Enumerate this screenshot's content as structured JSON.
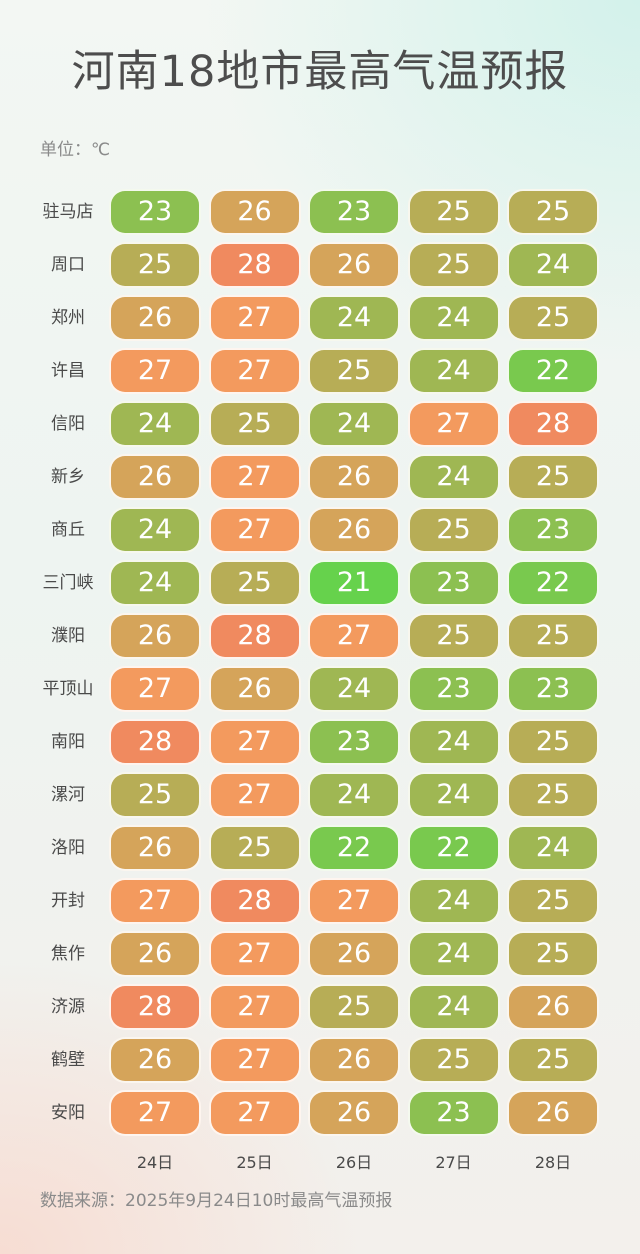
{
  "title": "河南18地市最高气温预报",
  "unit": "单位：℃",
  "source": "数据来源：2025年9月24日10时最高气温预报",
  "colors": {
    "cool": "#66d24c",
    "mild": "#a8b254",
    "warm": "#f39a5e",
    "hot": "#f08a5f"
  },
  "chart_data": {
    "type": "heatmap",
    "columns": [
      "24日",
      "25日",
      "26日",
      "27日",
      "28日"
    ],
    "rows": [
      "驻马店",
      "周口",
      "郑州",
      "许昌",
      "信阳",
      "新乡",
      "商丘",
      "三门峡",
      "濮阳",
      "平顶山",
      "南阳",
      "漯河",
      "洛阳",
      "开封",
      "焦作",
      "济源",
      "鹤壁",
      "安阳"
    ],
    "values": [
      [
        23,
        26,
        23,
        25,
        25
      ],
      [
        25,
        28,
        26,
        25,
        24
      ],
      [
        26,
        27,
        24,
        24,
        25
      ],
      [
        27,
        27,
        25,
        24,
        22
      ],
      [
        24,
        25,
        24,
        27,
        28
      ],
      [
        26,
        27,
        26,
        24,
        25
      ],
      [
        24,
        27,
        26,
        25,
        23
      ],
      [
        24,
        25,
        21,
        23,
        22
      ],
      [
        26,
        28,
        27,
        25,
        25
      ],
      [
        27,
        26,
        24,
        23,
        23
      ],
      [
        28,
        27,
        23,
        24,
        25
      ],
      [
        25,
        27,
        24,
        24,
        25
      ],
      [
        26,
        25,
        22,
        22,
        24
      ],
      [
        27,
        28,
        27,
        24,
        25
      ],
      [
        26,
        27,
        26,
        24,
        25
      ],
      [
        28,
        27,
        25,
        24,
        26
      ],
      [
        26,
        27,
        26,
        25,
        25
      ],
      [
        27,
        27,
        26,
        23,
        26
      ]
    ]
  }
}
